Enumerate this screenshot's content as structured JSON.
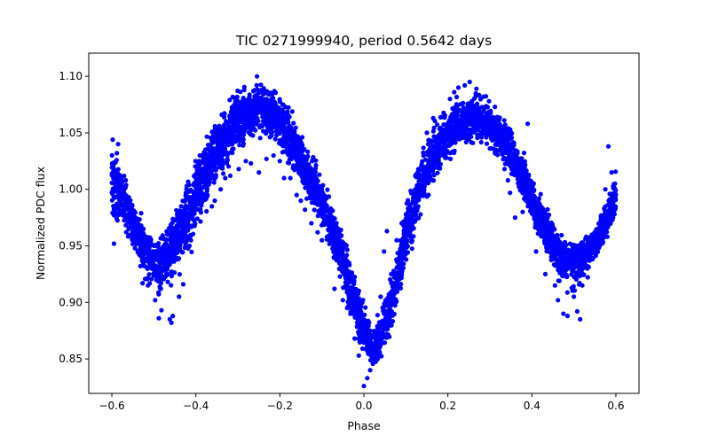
{
  "chart_data": {
    "type": "scatter",
    "title": "TIC 0271999940, period 0.5642 days",
    "xlabel": "Phase",
    "ylabel": "Normalized PDC flux",
    "xlim": [
      -0.655,
      0.655
    ],
    "ylim": [
      0.8195,
      1.1205
    ],
    "x_ticks": [
      -0.6,
      -0.4,
      -0.2,
      0.0,
      0.2,
      0.4,
      0.6
    ],
    "x_tick_labels": [
      "−0.6",
      "−0.4",
      "−0.2",
      "0.0",
      "0.2",
      "0.4",
      "0.6"
    ],
    "y_ticks": [
      0.85,
      0.9,
      0.95,
      1.0,
      1.05,
      1.1
    ],
    "y_tick_labels": [
      "0.85",
      "0.90",
      "0.95",
      "1.00",
      "1.05",
      "1.10"
    ],
    "grid": false,
    "series": [
      {
        "color": "#0000ff",
        "x_range": [
          -0.6,
          0.6
        ],
        "envelope": {
          "x": [
            -0.6,
            -0.58,
            -0.55,
            -0.52,
            -0.49,
            -0.46,
            -0.42,
            -0.38,
            -0.34,
            -0.3,
            -0.26,
            -0.24,
            -0.22,
            -0.18,
            -0.14,
            -0.1,
            -0.06,
            -0.03,
            0.0,
            0.02,
            0.04,
            0.07,
            0.1,
            0.14,
            0.18,
            0.22,
            0.26,
            0.28,
            0.3,
            0.34,
            0.38,
            0.42,
            0.46,
            0.49,
            0.52,
            0.55,
            0.58,
            0.6
          ],
          "center": [
            1.015,
            0.998,
            0.97,
            0.945,
            0.935,
            0.945,
            0.975,
            1.01,
            1.04,
            1.062,
            1.07,
            1.072,
            1.068,
            1.05,
            1.02,
            0.99,
            0.95,
            0.91,
            0.875,
            0.858,
            0.868,
            0.905,
            0.96,
            1.01,
            1.04,
            1.057,
            1.063,
            1.062,
            1.058,
            1.04,
            1.01,
            0.975,
            0.945,
            0.935,
            0.94,
            0.955,
            0.975,
            0.995
          ],
          "upper": [
            1.045,
            1.03,
            1.0,
            0.975,
            0.965,
            0.985,
            1.02,
            1.055,
            1.082,
            1.098,
            1.105,
            1.106,
            1.102,
            1.08,
            1.05,
            1.02,
            0.985,
            0.945,
            0.905,
            0.888,
            0.905,
            0.945,
            1.0,
            1.05,
            1.075,
            1.087,
            1.09,
            1.088,
            1.083,
            1.068,
            1.04,
            1.005,
            0.975,
            0.965,
            0.965,
            0.975,
            0.995,
            1.03
          ],
          "lower": [
            0.955,
            0.96,
            0.935,
            0.91,
            0.895,
            0.9,
            0.925,
            0.965,
            1.0,
            1.025,
            1.035,
            1.036,
            1.033,
            1.015,
            0.985,
            0.955,
            0.915,
            0.875,
            0.845,
            0.835,
            0.84,
            0.87,
            0.92,
            0.97,
            1.005,
            1.025,
            1.032,
            1.032,
            1.028,
            1.01,
            0.98,
            0.945,
            0.91,
            0.895,
            0.905,
            0.925,
            0.945,
            0.96
          ]
        },
        "outliers": [
          [
            -0.595,
            0.952
          ],
          [
            -0.592,
            0.978
          ],
          [
            -0.588,
            1.032
          ],
          [
            -0.598,
            1.044
          ],
          [
            -0.585,
            1.04
          ],
          [
            -0.56,
            0.965
          ],
          [
            -0.545,
            0.948
          ],
          [
            -0.527,
            0.917
          ],
          [
            -0.514,
            0.915
          ],
          [
            -0.505,
            0.93
          ],
          [
            -0.497,
            0.902
          ],
          [
            -0.488,
            0.886
          ],
          [
            -0.482,
            0.893
          ],
          [
            -0.462,
            0.885
          ],
          [
            -0.458,
            0.882
          ],
          [
            -0.455,
            0.888
          ],
          [
            -0.44,
            0.905
          ],
          [
            -0.43,
            0.916
          ],
          [
            -0.419,
            0.958
          ],
          [
            -0.404,
            0.972
          ],
          [
            -0.402,
            0.993
          ],
          [
            -0.397,
            1.017
          ],
          [
            -0.386,
            1.03
          ],
          [
            -0.38,
            1.012
          ],
          [
            -0.362,
            0.985
          ],
          [
            -0.355,
            0.99
          ],
          [
            -0.341,
            1.0
          ],
          [
            -0.33,
            1.01
          ],
          [
            -0.318,
            1.012
          ],
          [
            -0.298,
            1.018
          ],
          [
            -0.281,
            1.025
          ],
          [
            -0.269,
            1.023
          ],
          [
            -0.25,
            1.015
          ],
          [
            -0.232,
            1.027
          ],
          [
            -0.215,
            1.03
          ],
          [
            -0.2,
            1.025
          ],
          [
            -0.19,
            1.01
          ],
          [
            -0.175,
            1.01
          ],
          [
            -0.16,
            0.995
          ],
          [
            -0.15,
            0.99
          ],
          [
            -0.14,
            0.982
          ],
          [
            -0.125,
            0.97
          ],
          [
            -0.11,
            0.962
          ],
          [
            -0.1,
            0.955
          ],
          [
            -0.07,
            0.912
          ],
          [
            -0.05,
            0.902
          ],
          [
            -0.04,
            0.895
          ],
          [
            -0.032,
            0.89
          ],
          [
            -0.022,
            0.868
          ],
          [
            -0.012,
            0.853
          ],
          [
            0.0,
            0.826
          ],
          [
            0.008,
            0.833
          ],
          [
            0.015,
            0.84
          ],
          [
            0.03,
            0.86
          ],
          [
            0.04,
            0.905
          ],
          [
            0.048,
            0.945
          ],
          [
            0.055,
            0.963
          ],
          [
            0.065,
            0.925
          ],
          [
            0.078,
            0.955
          ],
          [
            0.09,
            0.97
          ],
          [
            0.11,
            0.985
          ],
          [
            0.128,
            1.015
          ],
          [
            0.15,
            1.05
          ],
          [
            0.165,
            1.063
          ],
          [
            0.185,
            1.064
          ],
          [
            0.195,
            1.045
          ],
          [
            0.205,
            1.08
          ],
          [
            0.215,
            1.086
          ],
          [
            0.225,
            1.09
          ],
          [
            0.24,
            1.092
          ],
          [
            0.252,
            1.095
          ],
          [
            0.268,
            1.089
          ],
          [
            0.285,
            1.082
          ],
          [
            0.298,
            1.078
          ],
          [
            0.312,
            1.073
          ],
          [
            0.33,
            1.038
          ],
          [
            0.335,
            1.018
          ],
          [
            0.343,
            1.008
          ],
          [
            0.348,
            0.997
          ],
          [
            0.36,
            0.975
          ],
          [
            0.375,
            1.0
          ],
          [
            0.378,
            0.98
          ],
          [
            0.39,
            1.058
          ],
          [
            0.41,
            0.945
          ],
          [
            0.432,
            0.925
          ],
          [
            0.455,
            0.915
          ],
          [
            0.462,
            0.902
          ],
          [
            0.475,
            0.89
          ],
          [
            0.485,
            0.888
          ],
          [
            0.5,
            0.905
          ],
          [
            0.508,
            0.892
          ],
          [
            0.515,
            0.885
          ],
          [
            0.52,
            0.915
          ],
          [
            0.532,
            0.93
          ],
          [
            0.548,
            0.945
          ],
          [
            0.565,
            0.962
          ],
          [
            0.575,
            1.0
          ],
          [
            0.582,
            1.038
          ],
          [
            0.59,
            1.015
          ],
          [
            0.598,
            1.005
          ]
        ]
      }
    ]
  }
}
